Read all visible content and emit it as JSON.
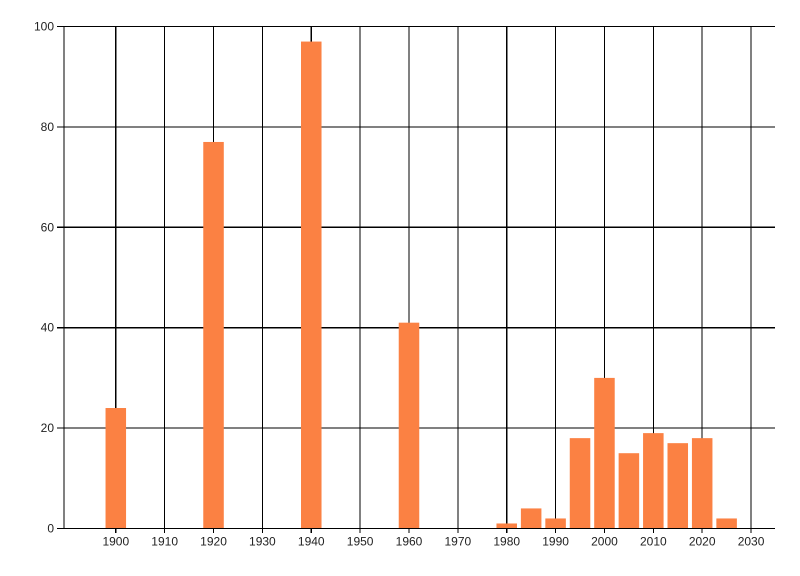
{
  "chart_data": {
    "type": "bar",
    "title": "",
    "xlabel": "",
    "ylabel": "",
    "x": [
      1900,
      1920,
      1940,
      1960,
      1980,
      1985,
      1990,
      1995,
      2000,
      2005,
      2010,
      2015,
      2020,
      2025
    ],
    "values": [
      24,
      77,
      97,
      41,
      1,
      4,
      2,
      18,
      30,
      15,
      19,
      17,
      18,
      2
    ],
    "x_ticks": [
      1900,
      1910,
      1920,
      1930,
      1940,
      1950,
      1960,
      1970,
      1980,
      1990,
      2000,
      2010,
      2020,
      2030
    ],
    "y_ticks": [
      0,
      20,
      40,
      60,
      80,
      100
    ],
    "xlim": [
      1889.4,
      2034.9
    ],
    "ylim": [
      0,
      100
    ],
    "bar_width_years": 4.2,
    "grid": "on",
    "legend": "none",
    "colors": {
      "bar": "#fb8143",
      "gridline": "#000000",
      "axis": "#000000",
      "tick_label": "#222222",
      "background": "#ffffff"
    }
  }
}
